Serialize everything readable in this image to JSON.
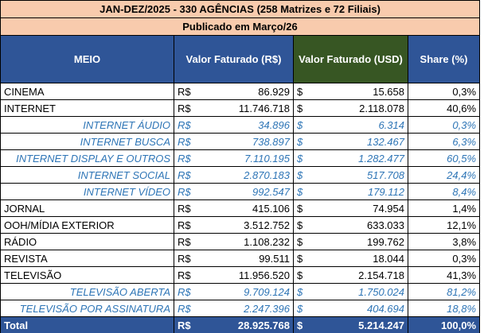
{
  "header": {
    "title": "JAN-DEZ/2025 - 330 AGÊNCIAS (258 Matrizes e 72 Filiais)",
    "subtitle": "Publicado em Março/26"
  },
  "table": {
    "columns": [
      "MEIO",
      "Valor Faturado (R$)",
      "Valor Faturado (USD)",
      "Share (%)"
    ],
    "rows": [
      [
        "CINEMA",
        "R$",
        "86.929",
        "$",
        "15.658",
        "0,3%"
      ],
      [
        "INTERNET",
        "R$",
        "11.746.718",
        "$",
        "2.118.078",
        "40,6%"
      ],
      [
        "INTERNET ÁUDIO",
        "R$",
        "34.896",
        "$",
        "6.314",
        "0,3%"
      ],
      [
        "INTERNET BUSCA",
        "R$",
        "738.897",
        "$",
        "132.467",
        "6,3%"
      ],
      [
        "INTERNET DISPLAY E OUTROS",
        "R$",
        "7.110.195",
        "$",
        "1.282.477",
        "60,5%"
      ],
      [
        "INTERNET SOCIAL",
        "R$",
        "2.870.183",
        "$",
        "517.708",
        "24,4%"
      ],
      [
        "INTERNET VÍDEO",
        "R$",
        "992.547",
        "$",
        "179.112",
        "8,4%"
      ],
      [
        "JORNAL",
        "R$",
        "415.106",
        "$",
        "74.954",
        "1,4%"
      ],
      [
        "OOH/MÍDIA EXTERIOR",
        "R$",
        "3.512.752",
        "$",
        "633.033",
        "12,1%"
      ],
      [
        "RÁDIO",
        "R$",
        "1.108.232",
        "$",
        "199.762",
        "3,8%"
      ],
      [
        "REVISTA",
        "R$",
        "99.511",
        "$",
        "18.044",
        "0,3%"
      ],
      [
        "TELEVISÃO",
        "R$",
        "11.956.520",
        "$",
        "2.154.718",
        "41,3%"
      ],
      [
        "TELEVISÃO ABERTA",
        "R$",
        "9.709.124",
        "$",
        "1.750.024",
        "81,2%"
      ],
      [
        "TELEVISÃO POR ASSINATURA",
        "R$",
        "2.247.396",
        "$",
        "404.694",
        "18,8%"
      ]
    ],
    "total": [
      "Total",
      "R$",
      "28.925.768",
      "$",
      "5.214.247",
      "100,0%"
    ]
  }
}
